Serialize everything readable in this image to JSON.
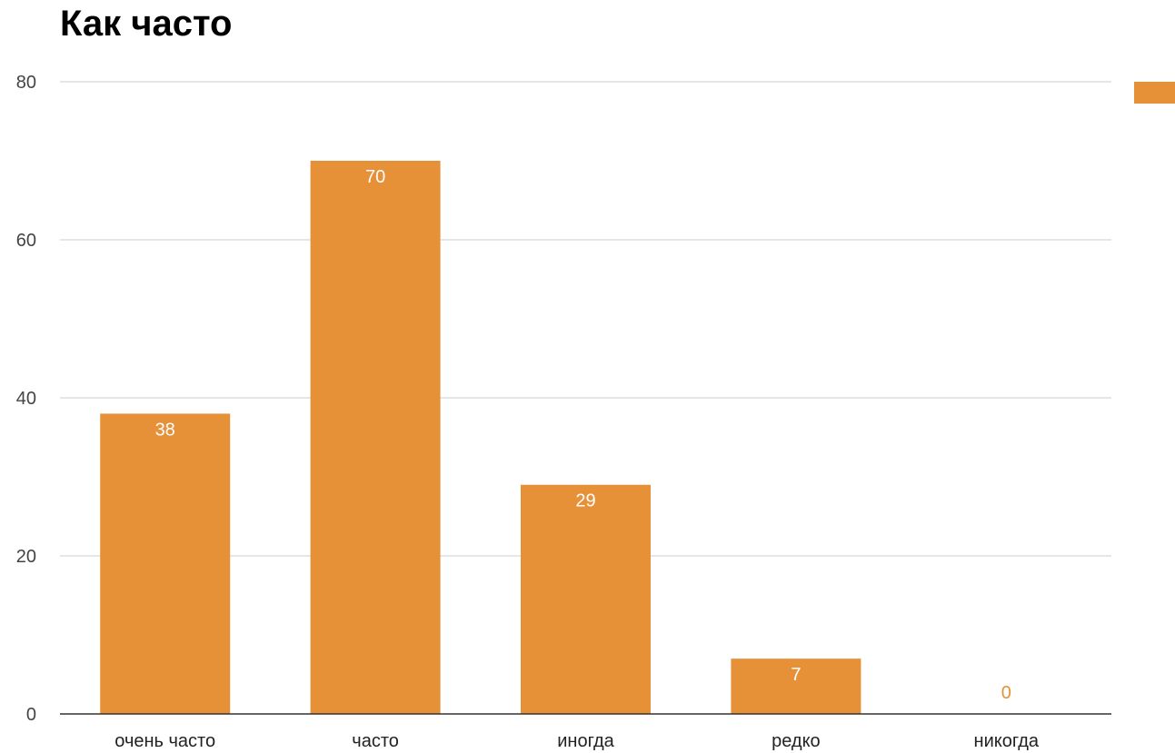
{
  "chart_data": {
    "type": "bar",
    "title": "Как часто",
    "xlabel": "",
    "ylabel": "",
    "categories": [
      "очень часто",
      "часто",
      "иногда",
      "редко",
      "никогда"
    ],
    "values": [
      38,
      70,
      29,
      7,
      0
    ],
    "data_labels": [
      "38",
      "70",
      "29",
      "7",
      "0"
    ],
    "y_ticks": [
      "0",
      "20",
      "40",
      "60",
      "80"
    ],
    "ylim": [
      0,
      80
    ],
    "grid": true,
    "legend": {
      "position": "top-right",
      "entries": [
        ""
      ]
    },
    "colors": {
      "bar": "#e69138",
      "gridline": "#cccccc",
      "axis": "#333333",
      "label_inside": "#ffffff",
      "label_outside": "#e69138"
    }
  }
}
